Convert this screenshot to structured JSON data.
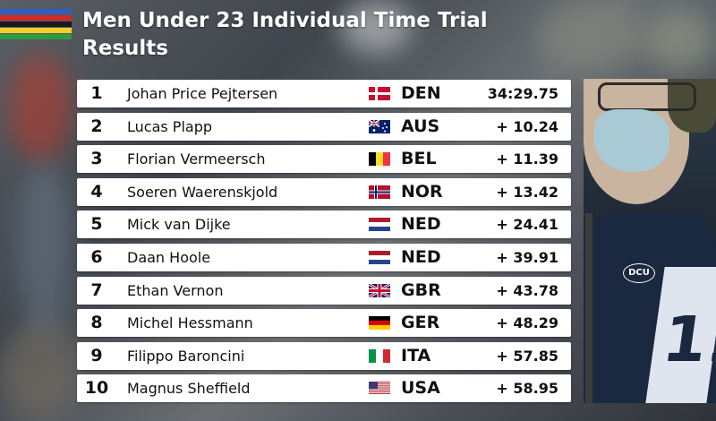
{
  "title_line1": "Men Under 23 Individual Time Trial",
  "title_line2": "Results",
  "rainbow_colors": [
    "#2f5fbf",
    "#d02a2a",
    "#1a1a1a",
    "#f2cf2a",
    "#2e9a42"
  ],
  "results": [
    {
      "rank": "1",
      "name": "Johan Price Pejtersen",
      "nation": "DEN",
      "time": "34:29.75",
      "flag": "denmark-flag"
    },
    {
      "rank": "2",
      "name": "Lucas Plapp",
      "nation": "AUS",
      "time": "+ 10.24",
      "flag": "australia-flag"
    },
    {
      "rank": "3",
      "name": "Florian Vermeersch",
      "nation": "BEL",
      "time": "+ 11.39",
      "flag": "belgium-flag"
    },
    {
      "rank": "4",
      "name": "Soeren Waerenskjold",
      "nation": "NOR",
      "time": "+ 13.42",
      "flag": "norway-flag"
    },
    {
      "rank": "5",
      "name": "Mick van Dijke",
      "nation": "NED",
      "time": "+ 24.41",
      "flag": "netherlands-flag"
    },
    {
      "rank": "6",
      "name": "Daan Hoole",
      "nation": "NED",
      "time": "+ 39.91",
      "flag": "netherlands-flag"
    },
    {
      "rank": "7",
      "name": "Ethan Vernon",
      "nation": "GBR",
      "time": "+ 43.78",
      "flag": "uk-flag"
    },
    {
      "rank": "8",
      "name": "Michel Hessmann",
      "nation": "GER",
      "time": "+ 48.29",
      "flag": "germany-flag"
    },
    {
      "rank": "9",
      "name": "Filippo Baroncini",
      "nation": "ITA",
      "time": "+ 57.85",
      "flag": "italy-flag"
    },
    {
      "rank": "10",
      "name": "Magnus Sheffield",
      "nation": "USA",
      "time": "+ 58.95",
      "flag": "usa-flag"
    }
  ],
  "camera": {
    "badge_text": "DCU",
    "jersey_text": "11"
  }
}
